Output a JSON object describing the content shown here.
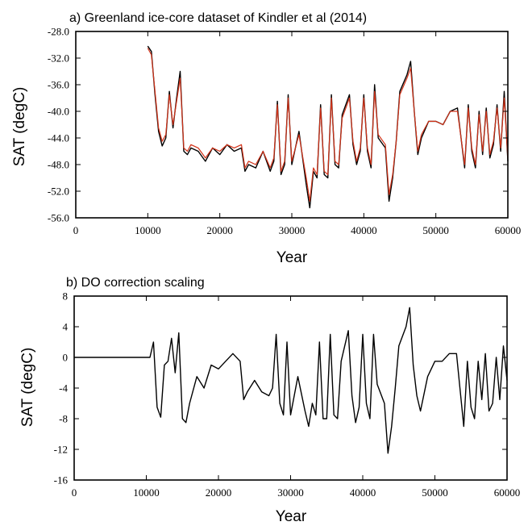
{
  "chart_data": [
    {
      "type": "line",
      "title": "a) Greenland ice-core dataset of Kindler et al  (2014)",
      "xlabel": "Year",
      "ylabel": "SAT (degC)",
      "xlim": [
        0,
        60000
      ],
      "ylim": [
        -56,
        -28
      ],
      "xticks": [
        0,
        10000,
        20000,
        30000,
        40000,
        50000,
        60000
      ],
      "yticks": [
        -56,
        -52,
        -48,
        -44,
        -40,
        -36,
        -32,
        -28
      ],
      "ytick_labels": [
        "-56.0",
        "-52.0",
        "-48.0",
        "-44.0",
        "-40.0",
        "-36.0",
        "-32.0",
        "-28.0"
      ],
      "grid": false,
      "series": [
        {
          "color": "#000000",
          "x": [
            10000,
            10500,
            11000,
            11500,
            12000,
            12500,
            13000,
            13500,
            14000,
            14500,
            15000,
            15500,
            16000,
            17000,
            18000,
            19000,
            20000,
            21000,
            22000,
            23000,
            23500,
            24000,
            25000,
            26000,
            27000,
            27500,
            28000,
            28500,
            29000,
            29500,
            30000,
            31000,
            32000,
            32500,
            33000,
            33500,
            34000,
            34500,
            35000,
            35500,
            36000,
            36500,
            37000,
            38000,
            38500,
            39000,
            39500,
            40000,
            40500,
            41000,
            41500,
            42000,
            43000,
            43500,
            44000,
            44500,
            45000,
            46000,
            46500,
            47000,
            47500,
            48000,
            49000,
            50000,
            51000,
            52000,
            53000,
            54000,
            54500,
            55000,
            55500,
            56000,
            56500,
            57000,
            57500,
            58000,
            58500,
            59000,
            59500,
            60000
          ],
          "y": [
            -30.2,
            -31.0,
            -37.5,
            -43.0,
            -45.2,
            -44.0,
            -37.0,
            -42.5,
            -38.0,
            -34.0,
            -46.0,
            -46.5,
            -45.5,
            -46.0,
            -47.5,
            -45.5,
            -46.5,
            -45.0,
            -46.0,
            -45.5,
            -49.0,
            -48.0,
            -48.5,
            -46.0,
            -49.0,
            -47.5,
            -38.5,
            -49.5,
            -48.0,
            -37.5,
            -48.0,
            -43.0,
            -51.0,
            -54.5,
            -49.0,
            -50.0,
            -39.0,
            -49.5,
            -50.0,
            -37.5,
            -48.0,
            -48.5,
            -40.5,
            -37.5,
            -45.0,
            -48.0,
            -46.0,
            -37.5,
            -46.0,
            -48.5,
            -36.0,
            -44.0,
            -45.5,
            -53.5,
            -50.0,
            -44.5,
            -37.0,
            -34.5,
            -32.5,
            -40.0,
            -46.5,
            -44.0,
            -41.5,
            -41.5,
            -42.0,
            -40.0,
            -39.5,
            -48.5,
            -39.0,
            -46.0,
            -48.5,
            -40.0,
            -46.5,
            -39.5,
            -47.0,
            -45.0,
            -39.0,
            -46.0,
            -37.0,
            -47.5
          ]
        },
        {
          "color": "#d23218",
          "x": [
            10000,
            10500,
            11000,
            11500,
            12000,
            12500,
            13000,
            13500,
            14000,
            14500,
            15000,
            15500,
            16000,
            17000,
            18000,
            19000,
            20000,
            21000,
            22000,
            23000,
            23500,
            24000,
            25000,
            26000,
            27000,
            27500,
            28000,
            28500,
            29000,
            29500,
            30000,
            31000,
            32000,
            32500,
            33000,
            33500,
            34000,
            34500,
            35000,
            35500,
            36000,
            36500,
            37000,
            38000,
            38500,
            39000,
            39500,
            40000,
            40500,
            41000,
            41500,
            42000,
            43000,
            43500,
            44000,
            44500,
            45000,
            46000,
            46500,
            47000,
            47500,
            48000,
            49000,
            50000,
            51000,
            52000,
            53000,
            54000,
            54500,
            55000,
            55500,
            56000,
            56500,
            57000,
            57500,
            58000,
            58500,
            59000,
            59500,
            60000
          ],
          "y": [
            -30.5,
            -31.5,
            -37.0,
            -42.5,
            -44.5,
            -43.5,
            -37.5,
            -42.0,
            -38.5,
            -35.0,
            -45.5,
            -46.0,
            -45.0,
            -45.5,
            -47.0,
            -45.5,
            -46.0,
            -45.0,
            -45.5,
            -45.0,
            -48.5,
            -47.5,
            -48.0,
            -46.0,
            -48.5,
            -47.0,
            -39.0,
            -49.0,
            -47.5,
            -38.0,
            -47.5,
            -43.5,
            -50.0,
            -53.5,
            -48.5,
            -49.5,
            -39.5,
            -49.0,
            -49.5,
            -38.0,
            -47.5,
            -48.0,
            -41.0,
            -38.0,
            -44.5,
            -47.5,
            -45.5,
            -38.0,
            -45.5,
            -48.0,
            -37.0,
            -43.5,
            -45.0,
            -52.5,
            -49.5,
            -44.5,
            -37.5,
            -35.0,
            -33.5,
            -40.0,
            -46.0,
            -43.5,
            -41.5,
            -41.5,
            -42.0,
            -40.0,
            -40.0,
            -48.0,
            -39.5,
            -45.5,
            -48.0,
            -40.5,
            -46.0,
            -40.0,
            -46.5,
            -44.5,
            -39.5,
            -45.5,
            -38.0,
            -47.0
          ]
        }
      ]
    },
    {
      "type": "line",
      "title": "b) DO correction scaling",
      "xlabel": "Year",
      "ylabel": "SAT (degC)",
      "xlim": [
        0,
        60000
      ],
      "ylim": [
        -16,
        8
      ],
      "xticks": [
        0,
        10000,
        20000,
        30000,
        40000,
        50000,
        60000
      ],
      "yticks": [
        -16,
        -12,
        -8,
        -4,
        0,
        4,
        8
      ],
      "ytick_labels": [
        "-16",
        "-12",
        "-8",
        "-4",
        "0",
        "4",
        "8"
      ],
      "grid": false,
      "series": [
        {
          "color": "#000000",
          "x": [
            0,
            10500,
            11000,
            11500,
            12000,
            12500,
            13000,
            13500,
            14000,
            14500,
            15000,
            15500,
            16000,
            17000,
            18000,
            19000,
            20000,
            21000,
            22000,
            23000,
            23500,
            24000,
            25000,
            26000,
            27000,
            27500,
            28000,
            28500,
            29000,
            29500,
            30000,
            31000,
            32000,
            32500,
            33000,
            33500,
            34000,
            34500,
            35000,
            35500,
            36000,
            36500,
            37000,
            38000,
            38500,
            39000,
            39500,
            40000,
            40500,
            41000,
            41500,
            42000,
            43000,
            43500,
            44000,
            44500,
            45000,
            46000,
            46500,
            47000,
            47500,
            48000,
            49000,
            50000,
            51000,
            52000,
            53000,
            54000,
            54500,
            55000,
            55500,
            56000,
            56500,
            57000,
            57500,
            58000,
            58500,
            59000,
            59500,
            60000
          ],
          "y": [
            0,
            0,
            2.0,
            -6.5,
            -7.8,
            -1.0,
            -0.5,
            2.5,
            -2.0,
            3.2,
            -8.0,
            -8.5,
            -6.0,
            -2.5,
            -4.0,
            -1.0,
            -1.5,
            -0.5,
            0.5,
            -0.5,
            -5.5,
            -4.5,
            -3.0,
            -4.5,
            -5.0,
            -4.0,
            3.0,
            -6.0,
            -7.5,
            2.0,
            -7.5,
            -2.5,
            -7.0,
            -9.0,
            -6.0,
            -7.5,
            2.0,
            -8.0,
            -8.0,
            3.0,
            -7.5,
            -8.0,
            -0.5,
            3.5,
            -5.0,
            -8.5,
            -6.5,
            3.0,
            -6.0,
            -8.0,
            3.0,
            -3.5,
            -6.0,
            -12.5,
            -9.0,
            -4.0,
            1.5,
            4.0,
            6.5,
            -1.0,
            -5.0,
            -7.0,
            -2.5,
            -0.5,
            -0.5,
            0.5,
            0.5,
            -9.0,
            -0.5,
            -6.5,
            -8.0,
            -0.5,
            -5.5,
            0.5,
            -7.0,
            -6.0,
            0,
            -5.5,
            1.5,
            -3.0
          ]
        }
      ]
    }
  ]
}
